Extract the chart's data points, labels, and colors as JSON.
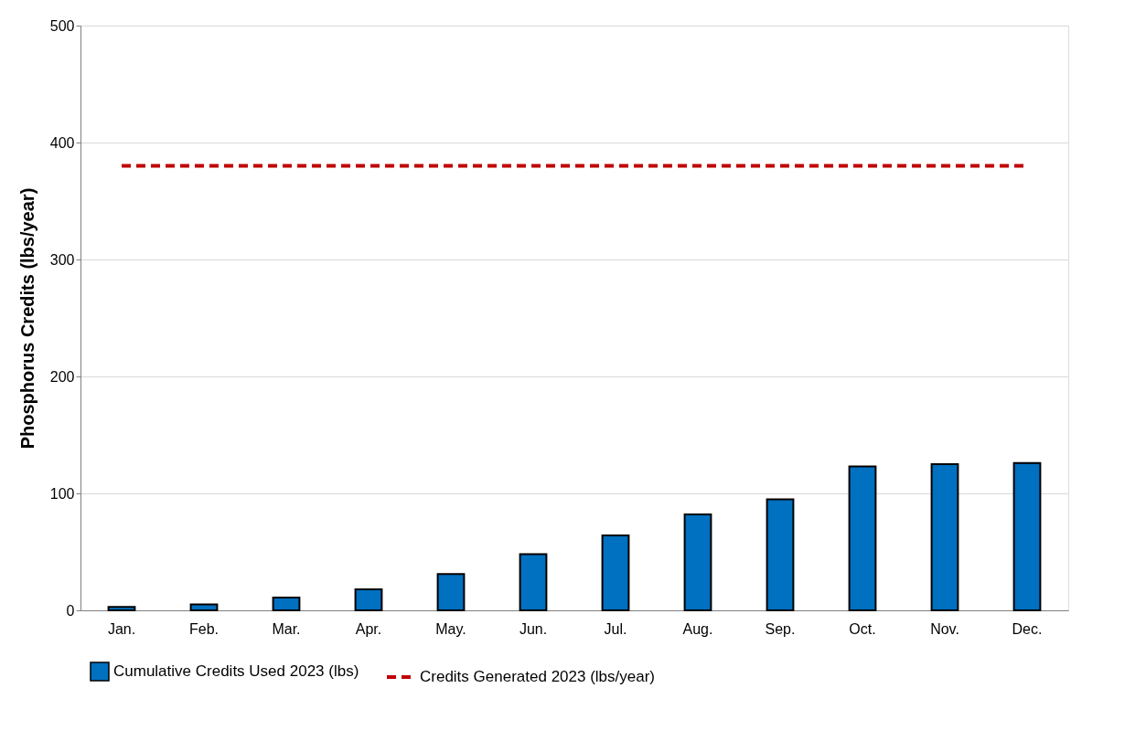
{
  "chart_data": {
    "type": "bar",
    "ylabel": "Phosphorus Credits (lbs/year)",
    "categories": [
      "Jan.",
      "Feb.",
      "Mar.",
      "Apr.",
      "May.",
      "Jun.",
      "Jul.",
      "Aug.",
      "Sep.",
      "Oct.",
      "Nov.",
      "Dec."
    ],
    "series": [
      {
        "name": "Cumulative Credits Used 2023 (lbs)",
        "color": "#0070c0",
        "values": [
          3,
          5,
          11,
          18,
          31,
          48,
          64,
          82,
          95,
          123,
          125,
          126
        ]
      },
      {
        "name": "Credits Generated 2023 (lbs/year)",
        "type": "line",
        "color": "#c00000",
        "line_style": "dashed",
        "values": [
          380,
          380,
          380,
          380,
          380,
          380,
          380,
          380,
          380,
          380,
          380,
          380
        ]
      }
    ],
    "ylim": [
      0,
      500
    ],
    "yticks": [
      0,
      100,
      200,
      300,
      400,
      500
    ],
    "grid": "y",
    "legend": "bottom"
  }
}
